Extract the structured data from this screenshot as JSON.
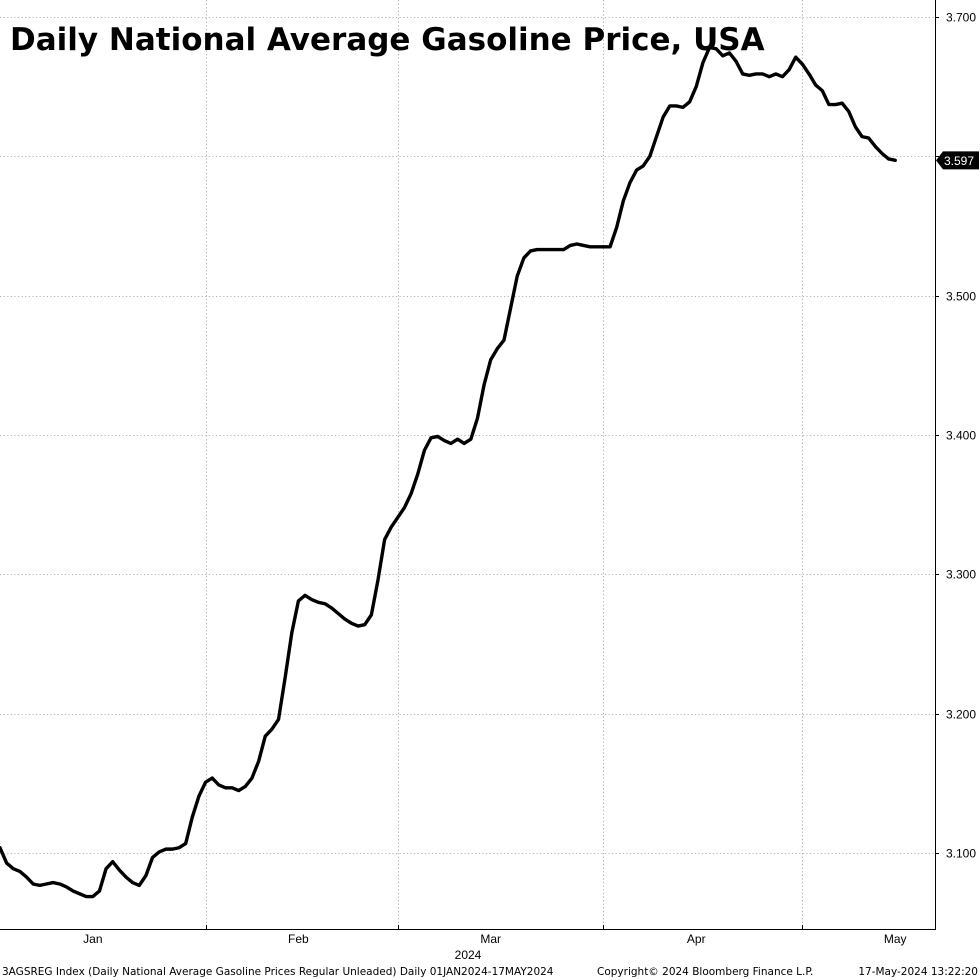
{
  "chart_data": {
    "type": "line",
    "title": "Daily National Average Gasoline Price, USA",
    "year_label": "2024",
    "x_ticks": [
      {
        "label": "Jan",
        "date": "2024-01-15"
      },
      {
        "label": "Feb",
        "date": "2024-02-15"
      },
      {
        "label": "Mar",
        "date": "2024-03-15"
      },
      {
        "label": "Apr",
        "date": "2024-04-15"
      },
      {
        "label": "May",
        "date": "2024-05-15"
      }
    ],
    "x_grid": [
      "2024-02-01",
      "2024-03-01",
      "2024-04-01",
      "2024-05-01"
    ],
    "x_range": [
      "2024-01-01",
      "2024-05-21"
    ],
    "y_ticks": [
      "3.100",
      "3.200",
      "3.300",
      "3.400",
      "3.500",
      "3.600",
      "3.700"
    ],
    "ylim": [
      3.045,
      3.712
    ],
    "grid": true,
    "y_axis_side": "right",
    "last_value_label": "3.597",
    "series": [
      {
        "color": "#000000",
        "points": [
          [
            "2024-01-01",
            3.104
          ],
          [
            "2024-01-02",
            3.093
          ],
          [
            "2024-01-03",
            3.089
          ],
          [
            "2024-01-04",
            3.087
          ],
          [
            "2024-01-05",
            3.083
          ],
          [
            "2024-01-06",
            3.078
          ],
          [
            "2024-01-07",
            3.077
          ],
          [
            "2024-01-08",
            3.078
          ],
          [
            "2024-01-09",
            3.079
          ],
          [
            "2024-01-10",
            3.078
          ],
          [
            "2024-01-11",
            3.076
          ],
          [
            "2024-01-12",
            3.073
          ],
          [
            "2024-01-13",
            3.071
          ],
          [
            "2024-01-14",
            3.069
          ],
          [
            "2024-01-15",
            3.069
          ],
          [
            "2024-01-16",
            3.073
          ],
          [
            "2024-01-17",
            3.089
          ],
          [
            "2024-01-18",
            3.094
          ],
          [
            "2024-01-19",
            3.088
          ],
          [
            "2024-01-20",
            3.083
          ],
          [
            "2024-01-21",
            3.079
          ],
          [
            "2024-01-22",
            3.077
          ],
          [
            "2024-01-23",
            3.084
          ],
          [
            "2024-01-24",
            3.097
          ],
          [
            "2024-01-25",
            3.101
          ],
          [
            "2024-01-26",
            3.103
          ],
          [
            "2024-01-27",
            3.103
          ],
          [
            "2024-01-28",
            3.104
          ],
          [
            "2024-01-29",
            3.107
          ],
          [
            "2024-01-30",
            3.126
          ],
          [
            "2024-01-31",
            3.141
          ],
          [
            "2024-02-01",
            3.151
          ],
          [
            "2024-02-02",
            3.154
          ],
          [
            "2024-02-03",
            3.149
          ],
          [
            "2024-02-04",
            3.147
          ],
          [
            "2024-02-05",
            3.147
          ],
          [
            "2024-02-06",
            3.145
          ],
          [
            "2024-02-07",
            3.148
          ],
          [
            "2024-02-08",
            3.154
          ],
          [
            "2024-02-09",
            3.166
          ],
          [
            "2024-02-10",
            3.184
          ],
          [
            "2024-02-11",
            3.189
          ],
          [
            "2024-02-12",
            3.196
          ],
          [
            "2024-02-13",
            3.226
          ],
          [
            "2024-02-14",
            3.258
          ],
          [
            "2024-02-15",
            3.281
          ],
          [
            "2024-02-16",
            3.285
          ],
          [
            "2024-02-17",
            3.282
          ],
          [
            "2024-02-18",
            3.28
          ],
          [
            "2024-02-19",
            3.279
          ],
          [
            "2024-02-20",
            3.276
          ],
          [
            "2024-02-21",
            3.272
          ],
          [
            "2024-02-22",
            3.268
          ],
          [
            "2024-02-23",
            3.265
          ],
          [
            "2024-02-24",
            3.263
          ],
          [
            "2024-02-25",
            3.264
          ],
          [
            "2024-02-26",
            3.271
          ],
          [
            "2024-02-27",
            3.296
          ],
          [
            "2024-02-28",
            3.325
          ],
          [
            "2024-02-29",
            3.334
          ],
          [
            "2024-03-01",
            3.341
          ],
          [
            "2024-03-02",
            3.348
          ],
          [
            "2024-03-03",
            3.358
          ],
          [
            "2024-03-04",
            3.372
          ],
          [
            "2024-03-05",
            3.389
          ],
          [
            "2024-03-06",
            3.398
          ],
          [
            "2024-03-07",
            3.399
          ],
          [
            "2024-03-08",
            3.396
          ],
          [
            "2024-03-09",
            3.394
          ],
          [
            "2024-03-10",
            3.397
          ],
          [
            "2024-03-11",
            3.394
          ],
          [
            "2024-03-12",
            3.397
          ],
          [
            "2024-03-13",
            3.412
          ],
          [
            "2024-03-14",
            3.436
          ],
          [
            "2024-03-15",
            3.454
          ],
          [
            "2024-03-16",
            3.462
          ],
          [
            "2024-03-17",
            3.468
          ],
          [
            "2024-03-18",
            3.491
          ],
          [
            "2024-03-19",
            3.514
          ],
          [
            "2024-03-20",
            3.527
          ],
          [
            "2024-03-21",
            3.532
          ],
          [
            "2024-03-22",
            3.533
          ],
          [
            "2024-03-23",
            3.533
          ],
          [
            "2024-03-24",
            3.533
          ],
          [
            "2024-03-25",
            3.533
          ],
          [
            "2024-03-26",
            3.533
          ],
          [
            "2024-03-27",
            3.536
          ],
          [
            "2024-03-28",
            3.537
          ],
          [
            "2024-03-29",
            3.536
          ],
          [
            "2024-03-30",
            3.535
          ],
          [
            "2024-03-31",
            3.535
          ],
          [
            "2024-04-01",
            3.535
          ],
          [
            "2024-04-02",
            3.535
          ],
          [
            "2024-04-03",
            3.549
          ],
          [
            "2024-04-04",
            3.568
          ],
          [
            "2024-04-05",
            3.581
          ],
          [
            "2024-04-06",
            3.59
          ],
          [
            "2024-04-07",
            3.593
          ],
          [
            "2024-04-08",
            3.6
          ],
          [
            "2024-04-09",
            3.614
          ],
          [
            "2024-04-10",
            3.628
          ],
          [
            "2024-04-11",
            3.636
          ],
          [
            "2024-04-12",
            3.636
          ],
          [
            "2024-04-13",
            3.635
          ],
          [
            "2024-04-14",
            3.639
          ],
          [
            "2024-04-15",
            3.65
          ],
          [
            "2024-04-16",
            3.667
          ],
          [
            "2024-04-17",
            3.678
          ],
          [
            "2024-04-18",
            3.677
          ],
          [
            "2024-04-19",
            3.672
          ],
          [
            "2024-04-20",
            3.674
          ],
          [
            "2024-04-21",
            3.668
          ],
          [
            "2024-04-22",
            3.659
          ],
          [
            "2024-04-23",
            3.658
          ],
          [
            "2024-04-24",
            3.659
          ],
          [
            "2024-04-25",
            3.659
          ],
          [
            "2024-04-26",
            3.657
          ],
          [
            "2024-04-27",
            3.659
          ],
          [
            "2024-04-28",
            3.657
          ],
          [
            "2024-04-29",
            3.662
          ],
          [
            "2024-04-30",
            3.671
          ],
          [
            "2024-05-01",
            3.666
          ],
          [
            "2024-05-02",
            3.659
          ],
          [
            "2024-05-03",
            3.651
          ],
          [
            "2024-05-04",
            3.647
          ],
          [
            "2024-05-05",
            3.637
          ],
          [
            "2024-05-06",
            3.637
          ],
          [
            "2024-05-07",
            3.638
          ],
          [
            "2024-05-08",
            3.632
          ],
          [
            "2024-05-09",
            3.621
          ],
          [
            "2024-05-10",
            3.614
          ],
          [
            "2024-05-11",
            3.613
          ],
          [
            "2024-05-12",
            3.607
          ],
          [
            "2024-05-13",
            3.602
          ],
          [
            "2024-05-14",
            3.598
          ],
          [
            "2024-05-15",
            3.597
          ]
        ]
      }
    ]
  },
  "footer": {
    "security": "3AGSREG Index (Daily National Average Gasoline Prices Regular Unleaded)  Daily 01JAN2024-17MAY2024",
    "copyright": "Copyright© 2024 Bloomberg Finance L.P.",
    "timestamp": "17-May-2024 13:22:20"
  }
}
